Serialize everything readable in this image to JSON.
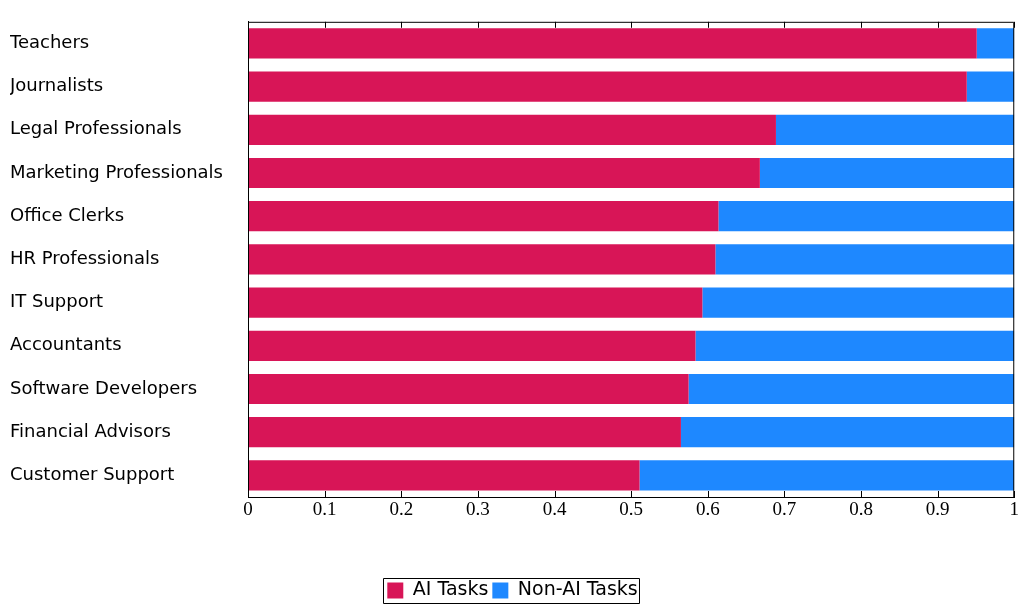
{
  "chart_data": {
    "type": "bar",
    "orientation": "horizontal",
    "stacked": true,
    "categories": [
      "Teachers",
      "Journalists",
      "Legal Professionals",
      "Marketing Professionals",
      "Office Clerks",
      "HR Professionals",
      "IT Support",
      "Accountants",
      "Software Developers",
      "Financial Advisors",
      "Customer Support"
    ],
    "series": [
      {
        "name": "AI Tasks",
        "color": "#d81557",
        "values": [
          0.951,
          0.938,
          0.689,
          0.668,
          0.614,
          0.61,
          0.593,
          0.584,
          0.575,
          0.565,
          0.511
        ]
      },
      {
        "name": "Non-AI Tasks",
        "color": "#1e88ff",
        "values": [
          0.049,
          0.062,
          0.311,
          0.332,
          0.386,
          0.39,
          0.407,
          0.416,
          0.425,
          0.435,
          0.489
        ]
      }
    ],
    "xlim": [
      0,
      1
    ],
    "xticks": [
      0,
      0.1,
      0.2,
      0.3,
      0.4,
      0.5,
      0.6,
      0.7,
      0.8,
      0.9,
      1
    ],
    "grid": false,
    "legend": "bottom"
  }
}
